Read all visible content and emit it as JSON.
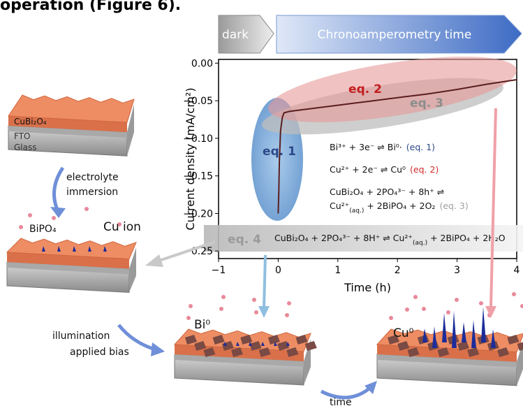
{
  "heading": "operation (Figure 6).",
  "chart_data": {
    "type": "line",
    "x_label": "Time (h)",
    "y_label": "Current density (mA/cm²)",
    "x": [
      0,
      0.01,
      0.02,
      0.04,
      0.07,
      0.1,
      0.2,
      0.5,
      1,
      1.5,
      2,
      2.5,
      3,
      3.5,
      4
    ],
    "values": [
      -0.2,
      -0.17,
      -0.13,
      -0.09,
      -0.072,
      -0.066,
      -0.064,
      -0.061,
      -0.056,
      -0.051,
      -0.046,
      -0.041,
      -0.035,
      -0.028,
      -0.022
    ],
    "color": "#5a1e1e",
    "xlim": [
      -1,
      4
    ],
    "ylim": [
      -0.26,
      0.005
    ],
    "xticks": [
      {
        "value": -1,
        "label": "−1"
      },
      0,
      1,
      2,
      3,
      4
    ],
    "yticks": [
      {
        "value": 0,
        "label": "0.00"
      },
      {
        "value": -0.05,
        "label": "−0.05"
      },
      {
        "value": -0.1,
        "label": "−0.10"
      },
      {
        "value": -0.15,
        "label": "−0.15"
      },
      {
        "value": -0.2,
        "label": "−0.20"
      },
      {
        "value": -0.25,
        "label": "−0.25"
      }
    ],
    "phases": [
      "dark",
      "Chronoamperometry time"
    ],
    "regions": [
      "eq. 1",
      "eq. 2",
      "eq. 3",
      "eq. 4"
    ],
    "equations": [
      {
        "lines": [
          [
            {
              "text": "Bi³⁺ + 3e⁻ ⇌ Bi⁰·"
            }
          ]
        ],
        "tag": "(eq. 1)",
        "color": "#2c4a8a"
      },
      {
        "lines": [
          [
            {
              "text": "Cu²⁺ + 2e⁻ ⇌ Cu⁰"
            }
          ]
        ],
        "tag": "(eq. 2)",
        "color": "#d42a2a"
      },
      {
        "lines": [
          [
            {
              "text": "CuBi₂O₄ + 2PO₄³⁻ + 8h⁺ ⇌"
            }
          ],
          [
            {
              "text": "Cu²⁺"
            },
            {
              "text": "(aq.)",
              "sub": true
            },
            {
              "text": " + 2BiPO₄ + 2O₂"
            }
          ]
        ],
        "tag": "(eq. 3)",
        "color": "#a0a0a0"
      }
    ],
    "band_equation": [
      {
        "text": "CuBi₂O₄ + 2PO₄³⁻ + 8H⁺ ⇌ Cu²⁺"
      },
      {
        "text": "(aq.)",
        "sub": true
      },
      {
        "text": " + 2BiPO₄ + 2H₂O"
      }
    ]
  },
  "diagram": {
    "layers": [
      "CuBi₂O₄",
      "FTO",
      "Glass"
    ],
    "step1": [
      "electrolyte",
      "immersion"
    ],
    "bipo4": "BiPO₄",
    "cu_ion": "Cu ion",
    "step2": [
      "illumination",
      "applied bias"
    ],
    "bi0": "Bi⁰",
    "cu0": "Cu⁰",
    "time": "time"
  }
}
